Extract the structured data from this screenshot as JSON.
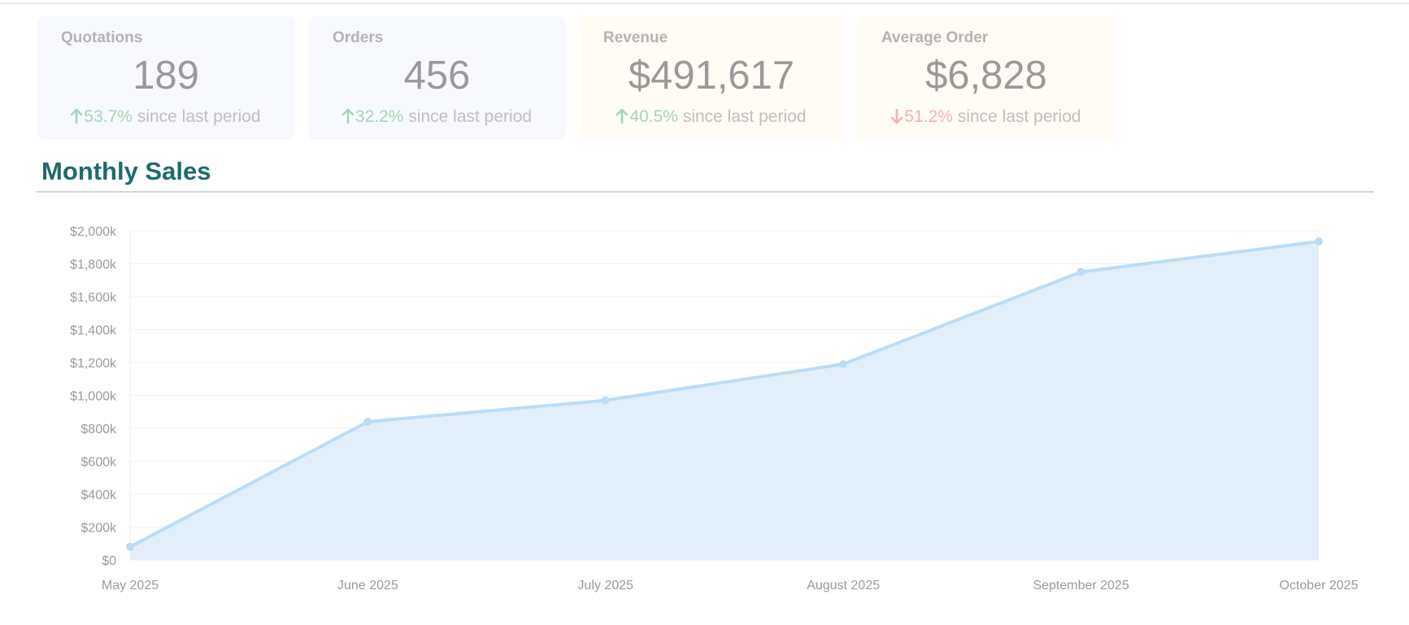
{
  "cards": [
    {
      "title": "Quotations",
      "value": "189",
      "change": "53.7%",
      "direction": "up",
      "suffix": "since last period",
      "tint": "blue"
    },
    {
      "title": "Orders",
      "value": "456",
      "change": "32.2%",
      "direction": "up",
      "suffix": "since last period",
      "tint": "blue"
    },
    {
      "title": "Revenue",
      "value": "$491,617",
      "change": "40.5%",
      "direction": "up",
      "suffix": "since last period",
      "tint": "cream"
    },
    {
      "title": "Average Order",
      "value": "$6,828",
      "change": "51.2%",
      "direction": "down",
      "suffix": "since last period",
      "tint": "cream"
    }
  ],
  "section": {
    "title": "Monthly Sales"
  },
  "colors": {
    "accent_title": "#1d6a6c",
    "up": "#a6d6b4",
    "down": "#f2b3b3",
    "series_line": "#bcdcf5",
    "series_fill": "#e3eefb"
  },
  "chart_data": {
    "type": "area",
    "categories": [
      "May 2025",
      "June 2025",
      "July 2025",
      "August 2025",
      "September 2025",
      "October 2025"
    ],
    "values": [
      80,
      840,
      970,
      1190,
      1750,
      1935
    ],
    "unit_note": "values in thousands of dollars",
    "y_ticks": [
      {
        "value": 0,
        "label": "$0"
      },
      {
        "value": 200,
        "label": "$200k"
      },
      {
        "value": 400,
        "label": "$400k"
      },
      {
        "value": 600,
        "label": "$600k"
      },
      {
        "value": 800,
        "label": "$800k"
      },
      {
        "value": 1000,
        "label": "$1,000k"
      },
      {
        "value": 1200,
        "label": "$1,200k"
      },
      {
        "value": 1400,
        "label": "$1,400k"
      },
      {
        "value": 1600,
        "label": "$1,600k"
      },
      {
        "value": 1800,
        "label": "$1,800k"
      },
      {
        "value": 2000,
        "label": "$2,000k"
      }
    ],
    "ylim": [
      0,
      2000
    ],
    "grid": true,
    "title": "",
    "xlabel": "",
    "ylabel": ""
  }
}
